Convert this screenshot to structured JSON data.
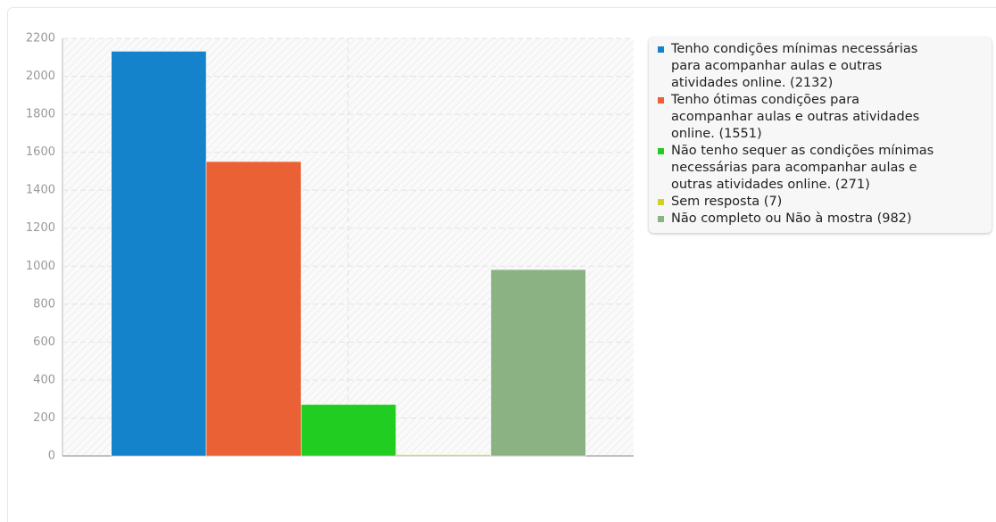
{
  "chart_data": {
    "type": "bar",
    "categories": [
      null
    ],
    "series": [
      {
        "name": "Tenho condições mínimas necessárias para acompanhar aulas e outras atividades online. (2132)",
        "color": "#1582cc",
        "values": [
          2132
        ]
      },
      {
        "name": "Tenho ótimas condições para acompanhar aulas e outras atividades online. (1551)",
        "color": "#e96134",
        "values": [
          1551
        ]
      },
      {
        "name": "Não tenho sequer as condições mínimas necessárias para acompanhar aulas e outras atividades online. (271)",
        "color": "#22cd22",
        "values": [
          271
        ]
      },
      {
        "name": "Sem resposta (7)",
        "color": "#d2d226",
        "values": [
          7
        ]
      },
      {
        "name": "Não completo ou Não à mostra (982)",
        "color": "#8ab283",
        "values": [
          982
        ]
      }
    ],
    "ylim": [
      0,
      2200
    ],
    "yticks": [
      0,
      200,
      400,
      600,
      800,
      1000,
      1200,
      1400,
      1600,
      1800,
      2000,
      2200
    ],
    "grid": true,
    "legend": "right"
  }
}
